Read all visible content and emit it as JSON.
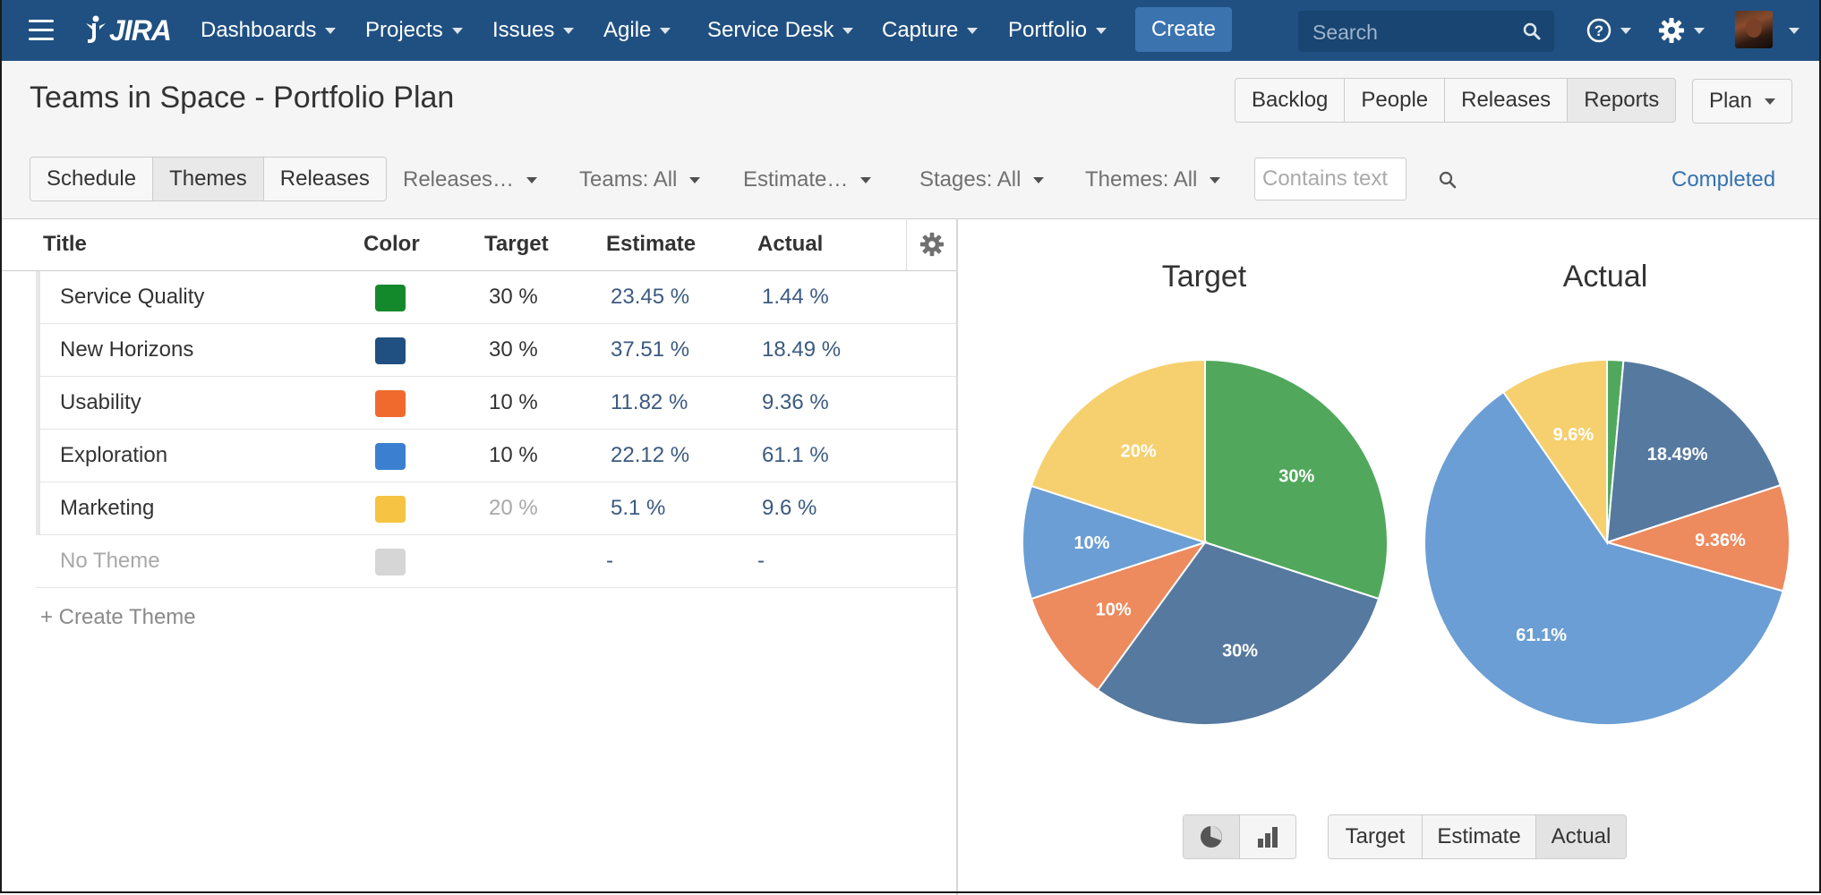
{
  "nav": {
    "logo": "JIRA",
    "items": [
      "Dashboards",
      "Projects",
      "Issues",
      "Agile",
      "Service Desk",
      "Capture",
      "Portfolio"
    ],
    "create_label": "Create",
    "search_placeholder": "Search"
  },
  "header": {
    "title": "Teams in Space - Portfolio Plan",
    "views": [
      "Backlog",
      "People",
      "Releases",
      "Reports"
    ],
    "active_view": "Reports",
    "plan_label": "Plan"
  },
  "filters": {
    "tabs": [
      "Schedule",
      "Themes",
      "Releases"
    ],
    "active_tab": "Themes",
    "dropdowns": [
      "Releases…",
      "Teams: All",
      "Estimate…",
      "Stages: All",
      "Themes: All"
    ],
    "text_placeholder": "Contains text",
    "completed_label": "Completed"
  },
  "table": {
    "columns": [
      "Title",
      "Color",
      "Target",
      "Estimate",
      "Actual"
    ],
    "rows": [
      {
        "title": "Service Quality",
        "color": "#14892c",
        "target": "30 %",
        "estimate": "23.45 %",
        "actual": "1.44 %"
      },
      {
        "title": "New Horizons",
        "color": "#205081",
        "target": "30 %",
        "estimate": "37.51 %",
        "actual": "18.49 %"
      },
      {
        "title": "Usability",
        "color": "#f06a2e",
        "target": "10 %",
        "estimate": "11.82 %",
        "actual": "9.36 %"
      },
      {
        "title": "Exploration",
        "color": "#3b7fd1",
        "target": "10 %",
        "estimate": "22.12 %",
        "actual": "61.1 %"
      },
      {
        "title": "Marketing",
        "color": "#f6c342",
        "target": "20 %",
        "estimate": "5.1 %",
        "actual": "9.6 %"
      },
      {
        "title": "No Theme",
        "color": "#d6d6d6",
        "target": "",
        "estimate": "-",
        "actual": "-"
      }
    ],
    "create_label": "+ Create Theme"
  },
  "charts": {
    "metrics": [
      "Target",
      "Estimate",
      "Actual"
    ],
    "active_metric": "Actual"
  },
  "chart_data": [
    {
      "type": "pie",
      "title": "Target",
      "categories": [
        "Service Quality",
        "New Horizons",
        "Usability",
        "Exploration",
        "Marketing"
      ],
      "values": [
        30,
        30,
        10,
        10,
        20
      ],
      "labels": [
        "30%",
        "30%",
        "10%",
        "10%",
        "20%"
      ],
      "colors": [
        "#51a85c",
        "#56799f",
        "#ed8a5e",
        "#6b9ed4",
        "#f6d06e"
      ]
    },
    {
      "type": "pie",
      "title": "Actual",
      "categories": [
        "Service Quality",
        "New Horizons",
        "Usability",
        "Exploration",
        "Marketing"
      ],
      "values": [
        1.44,
        18.49,
        9.36,
        61.1,
        9.6
      ],
      "labels": [
        "",
        "18.49%",
        "9.36%",
        "61.1%",
        "9.6%"
      ],
      "colors": [
        "#51a85c",
        "#56799f",
        "#ed8a5e",
        "#6b9ed4",
        "#f6d06e"
      ]
    }
  ]
}
